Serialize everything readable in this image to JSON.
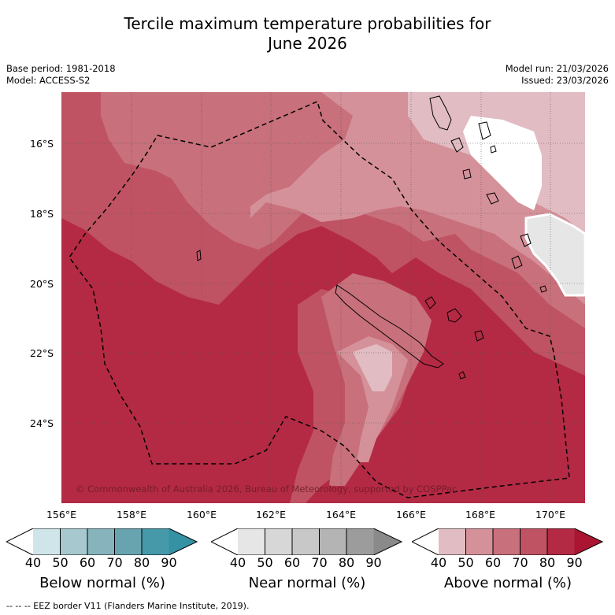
{
  "title_line1": "Tercile maximum temperature probabilities for",
  "title_line2": "June 2026",
  "base_period": "Base period: 1981-2018",
  "model": "Model: ACCESS-S2",
  "model_run": "Model run: 21/03/2026",
  "issued": "Issued: 23/03/2026",
  "copyright": "© Commonwealth of Australia 2026, Bureau of Meteorology, supported by COSPPac",
  "lat_labels": [
    "16°S",
    "18°S",
    "20°S",
    "22°S",
    "24°S"
  ],
  "lon_labels": [
    "156°E",
    "158°E",
    "160°E",
    "162°E",
    "164°E",
    "166°E",
    "168°E",
    "170°E"
  ],
  "colorbars": [
    {
      "label": "Below normal (%)",
      "ticks": [
        "40",
        "50",
        "60",
        "70",
        "80",
        "90"
      ],
      "colors": [
        "#ffffff",
        "#cfe5e9",
        "#a6c8ce",
        "#86b3bc",
        "#67a4b0",
        "#4599a9",
        "#3592a5"
      ]
    },
    {
      "label": "Near normal (%)",
      "ticks": [
        "40",
        "50",
        "60",
        "70",
        "80",
        "90"
      ],
      "colors": [
        "#ffffff",
        "#e6e6e6",
        "#d7d7d7",
        "#c8c8c8",
        "#b4b4b4",
        "#9c9c9c",
        "#8a8a8a"
      ]
    },
    {
      "label": "Above normal (%)",
      "ticks": [
        "40",
        "50",
        "60",
        "70",
        "80",
        "90"
      ],
      "colors": [
        "#ffffff",
        "#e2bcc3",
        "#d5919a",
        "#c8707b",
        "#bf5363",
        "#b42a44",
        "#ab1532"
      ]
    }
  ],
  "footnote": "--  --  -- EEZ border V11 (Flanders Marine Institute, 2019)."
}
